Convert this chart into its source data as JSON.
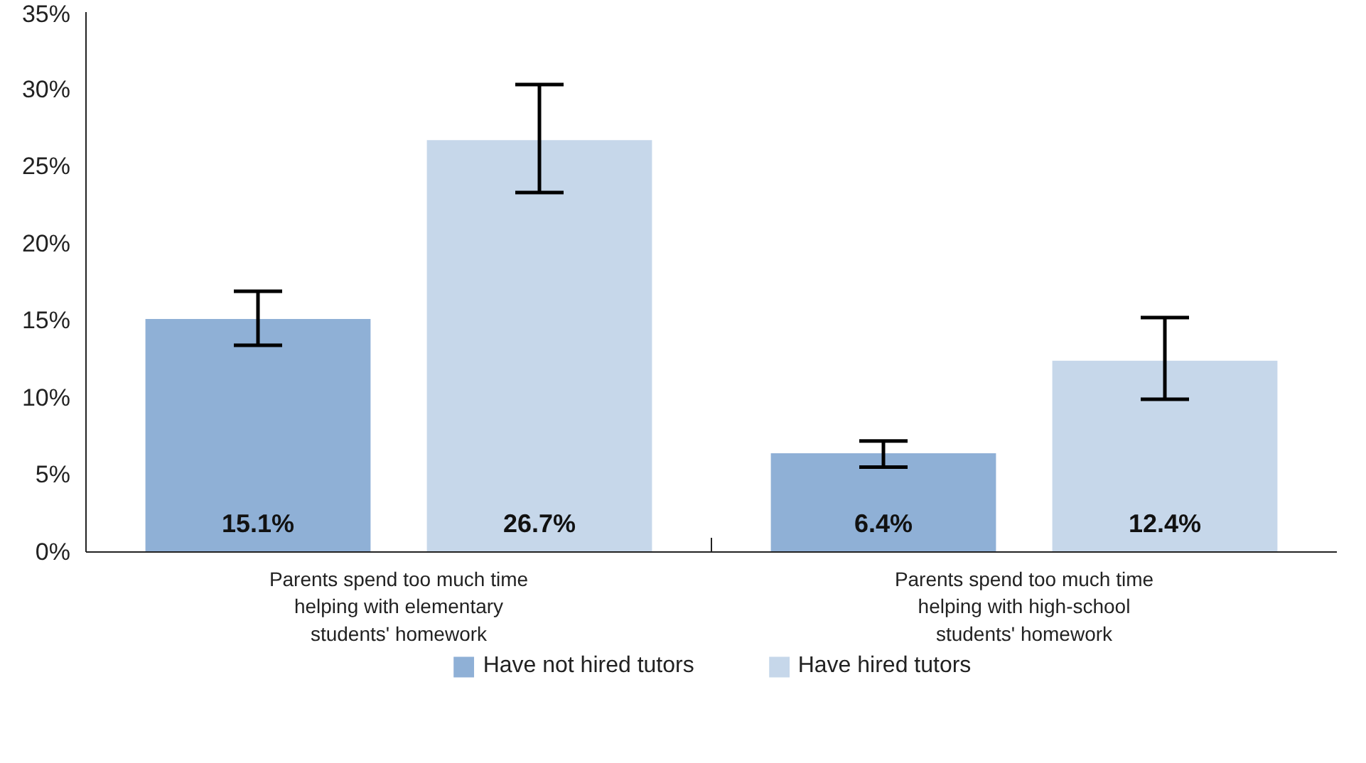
{
  "chart_data": {
    "type": "bar",
    "categories": [
      "Parents spend too much time helping with elementary students' homework",
      "Parents spend too much time helping with high-school students' homework"
    ],
    "series": [
      {
        "name": "Have not hired tutors",
        "color": "#8fb0d6",
        "values": [
          15.1,
          6.4
        ],
        "errors": [
          [
            13.4,
            16.9
          ],
          [
            5.5,
            7.2
          ]
        ],
        "value_labels": [
          "15.1%",
          "6.4%"
        ]
      },
      {
        "name": "Have hired tutors",
        "color": "#c6d7ea",
        "values": [
          26.7,
          12.4
        ],
        "errors": [
          [
            23.3,
            30.3
          ],
          [
            9.9,
            15.2
          ]
        ],
        "value_labels": [
          "26.7%",
          "12.4%"
        ]
      }
    ],
    "ylim": [
      0,
      35
    ],
    "yticks": [
      {
        "value": 0,
        "label": "0%"
      },
      {
        "value": 5,
        "label": "5%"
      },
      {
        "value": 10,
        "label": "10%"
      },
      {
        "value": 15,
        "label": "15%"
      },
      {
        "value": 20,
        "label": "20%"
      },
      {
        "value": 25,
        "label": "25%"
      },
      {
        "value": 30,
        "label": "30%"
      },
      {
        "value": 35,
        "label": "35%"
      }
    ],
    "grid": false,
    "legend": "bottom"
  }
}
